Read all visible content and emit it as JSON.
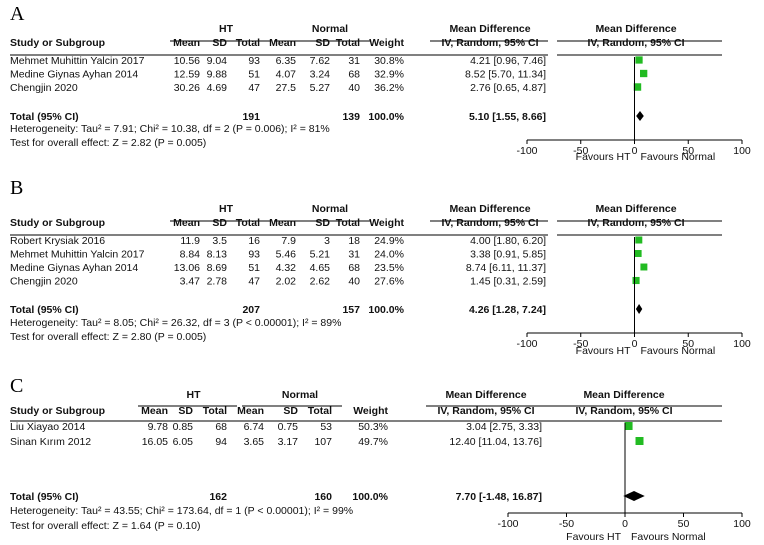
{
  "chart_data": [
    {
      "type": "forest",
      "panel_label": "A",
      "group1": "HT",
      "group2": "Normal",
      "headers": {
        "study": "Study or Subgroup",
        "mean": "Mean",
        "sd": "SD",
        "total": "Total",
        "weight": "Weight",
        "md": "Mean Difference",
        "method": "IV, Random, 95% CI"
      },
      "studies": [
        {
          "name": "Mehmet Muhittin Yalcin 2017",
          "m1": "10.56",
          "sd1": "9.04",
          "n1": "93",
          "m2": "6.35",
          "sd2": "7.62",
          "n2": "31",
          "weight": "30.8%",
          "ci_text": "4.21 [0.96, 7.46]",
          "md": 4.21,
          "lo": 0.96,
          "hi": 7.46
        },
        {
          "name": "Medine Giynas Ayhan 2014",
          "m1": "12.59",
          "sd1": "9.88",
          "n1": "51",
          "m2": "4.07",
          "sd2": "3.24",
          "n2": "68",
          "weight": "32.9%",
          "ci_text": "8.52 [5.70, 11.34]",
          "md": 8.52,
          "lo": 5.7,
          "hi": 11.34
        },
        {
          "name": "Chengjin 2020",
          "m1": "30.26",
          "sd1": "4.69",
          "n1": "47",
          "m2": "27.5",
          "sd2": "5.27",
          "n2": "40",
          "weight": "36.2%",
          "ci_text": "2.76 [0.65, 4.87]",
          "md": 2.76,
          "lo": 0.65,
          "hi": 4.87
        }
      ],
      "total": {
        "label": "Total (95% CI)",
        "n1": "191",
        "n2": "139",
        "weight": "100.0%",
        "ci_text": "5.10 [1.55, 8.66]",
        "md": 5.1,
        "lo": 1.55,
        "hi": 8.66
      },
      "heterogeneity": "Heterogeneity: Tau² = 7.91; Chi² = 10.38, df = 2 (P = 0.006); I² = 81%",
      "overall_effect": "Test for overall effect: Z = 2.82 (P = 0.005)",
      "xlim": [
        -100,
        100
      ],
      "ticks": [
        -100,
        -50,
        0,
        50,
        100
      ],
      "favours_left": "Favours HT",
      "favours_right": "Favours Normal"
    },
    {
      "type": "forest",
      "panel_label": "B",
      "group1": "HT",
      "group2": "Normal",
      "headers": {
        "study": "Study or Subgroup",
        "mean": "Mean",
        "sd": "SD",
        "total": "Total",
        "weight": "Weight",
        "md": "Mean Difference",
        "method": "IV, Random, 95% CI"
      },
      "studies": [
        {
          "name": "Robert Krysiak 2016",
          "m1": "11.9",
          "sd1": "3.5",
          "n1": "16",
          "m2": "7.9",
          "sd2": "3",
          "n2": "18",
          "weight": "24.9%",
          "ci_text": "4.00 [1.80, 6.20]",
          "md": 4.0,
          "lo": 1.8,
          "hi": 6.2
        },
        {
          "name": "Mehmet Muhittin Yalcin 2017",
          "m1": "8.84",
          "sd1": "8.13",
          "n1": "93",
          "m2": "5.46",
          "sd2": "5.21",
          "n2": "31",
          "weight": "24.0%",
          "ci_text": "3.38 [0.91, 5.85]",
          "md": 3.38,
          "lo": 0.91,
          "hi": 5.85
        },
        {
          "name": "Medine Giynas Ayhan 2014",
          "m1": "13.06",
          "sd1": "8.69",
          "n1": "51",
          "m2": "4.32",
          "sd2": "4.65",
          "n2": "68",
          "weight": "23.5%",
          "ci_text": "8.74 [6.11, 11.37]",
          "md": 8.74,
          "lo": 6.11,
          "hi": 11.37
        },
        {
          "name": "Chengjin 2020",
          "m1": "3.47",
          "sd1": "2.78",
          "n1": "47",
          "m2": "2.02",
          "sd2": "2.62",
          "n2": "40",
          "weight": "27.6%",
          "ci_text": "1.45 [0.31, 2.59]",
          "md": 1.45,
          "lo": 0.31,
          "hi": 2.59
        }
      ],
      "total": {
        "label": "Total (95% CI)",
        "n1": "207",
        "n2": "157",
        "weight": "100.0%",
        "ci_text": "4.26 [1.28, 7.24]",
        "md": 4.26,
        "lo": 1.28,
        "hi": 7.24
      },
      "heterogeneity": "Heterogeneity: Tau² = 8.05; Chi² = 26.32, df = 3 (P < 0.00001); I² = 89%",
      "overall_effect": "Test for overall effect: Z = 2.80 (P = 0.005)",
      "xlim": [
        -100,
        100
      ],
      "ticks": [
        -100,
        -50,
        0,
        50,
        100
      ],
      "favours_left": "Favours HT",
      "favours_right": "Favours Normal"
    },
    {
      "type": "forest",
      "panel_label": "C",
      "group1": "HT",
      "group2": "Normal",
      "headers": {
        "study": "Study or Subgroup",
        "mean": "Mean",
        "sd": "SD",
        "total": "Total",
        "weight": "Weight",
        "md": "Mean Difference",
        "method": "IV, Random, 95% CI"
      },
      "studies": [
        {
          "name": "Liu Xiayao 2014",
          "m1": "9.78",
          "sd1": "0.85",
          "n1": "68",
          "m2": "6.74",
          "sd2": "0.75",
          "n2": "53",
          "weight": "50.3%",
          "ci_text": "3.04 [2.75, 3.33]",
          "md": 3.04,
          "lo": 2.75,
          "hi": 3.33
        },
        {
          "name": "Sinan Kırım 2012",
          "m1": "16.05",
          "sd1": "6.05",
          "n1": "94",
          "m2": "3.65",
          "sd2": "3.17",
          "n2": "107",
          "weight": "49.7%",
          "ci_text": "12.40 [11.04, 13.76]",
          "md": 12.4,
          "lo": 11.04,
          "hi": 13.76
        }
      ],
      "total": {
        "label": "Total (95% CI)",
        "n1": "162",
        "n2": "160",
        "weight": "100.0%",
        "ci_text": "7.70 [-1.48, 16.87]",
        "md": 7.7,
        "lo": -1.48,
        "hi": 16.87
      },
      "heterogeneity": "Heterogeneity: Tau² = 43.55; Chi² = 173.64, df = 1 (P < 0.00001); I² = 99%",
      "overall_effect": "Test for overall effect: Z = 1.64 (P = 0.10)",
      "xlim": [
        -100,
        100
      ],
      "ticks": [
        -100,
        -50,
        0,
        50,
        100
      ],
      "favours_left": "Favours HT",
      "favours_right": "Favours Normal"
    }
  ],
  "colors": {
    "square": "#22bb22",
    "diamond": "#000000"
  }
}
